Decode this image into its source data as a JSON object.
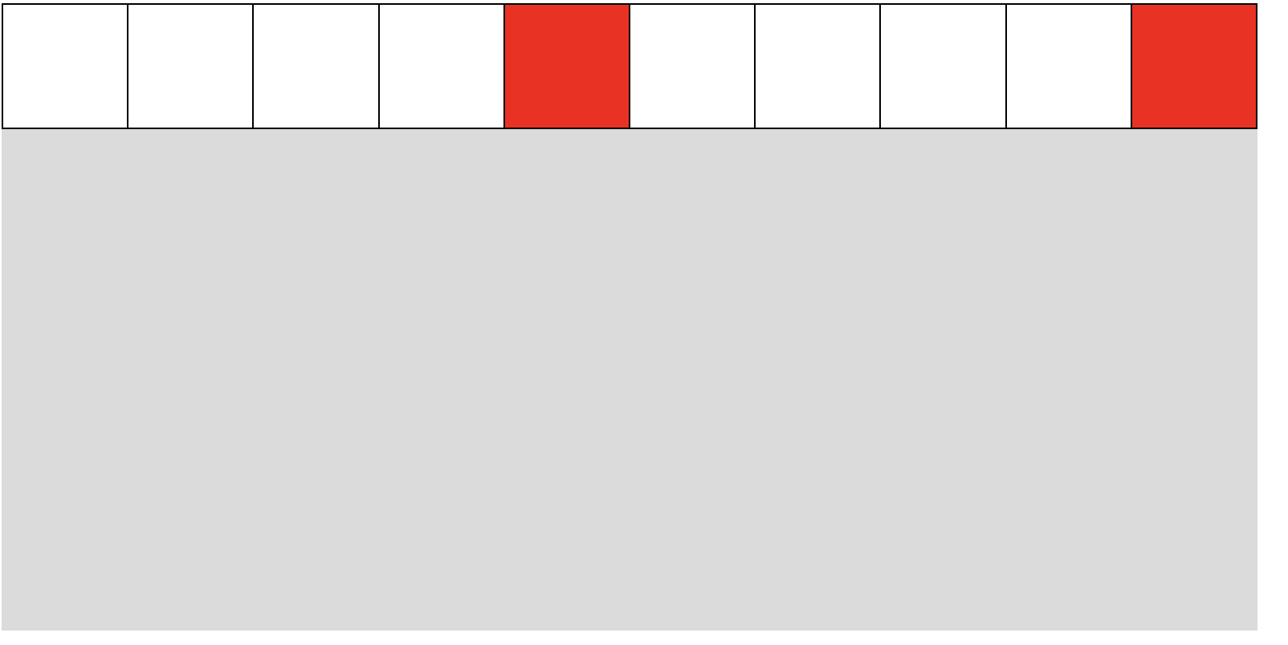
{
  "colors": {
    "filled": "#e83324",
    "empty": "#ffffff",
    "border": "#000000",
    "board_background": "#dbdbdb"
  },
  "cells": [
    {
      "filled": false
    },
    {
      "filled": false
    },
    {
      "filled": false
    },
    {
      "filled": false
    },
    {
      "filled": true
    },
    {
      "filled": false
    },
    {
      "filled": false
    },
    {
      "filled": false
    },
    {
      "filled": false
    },
    {
      "filled": true
    }
  ]
}
